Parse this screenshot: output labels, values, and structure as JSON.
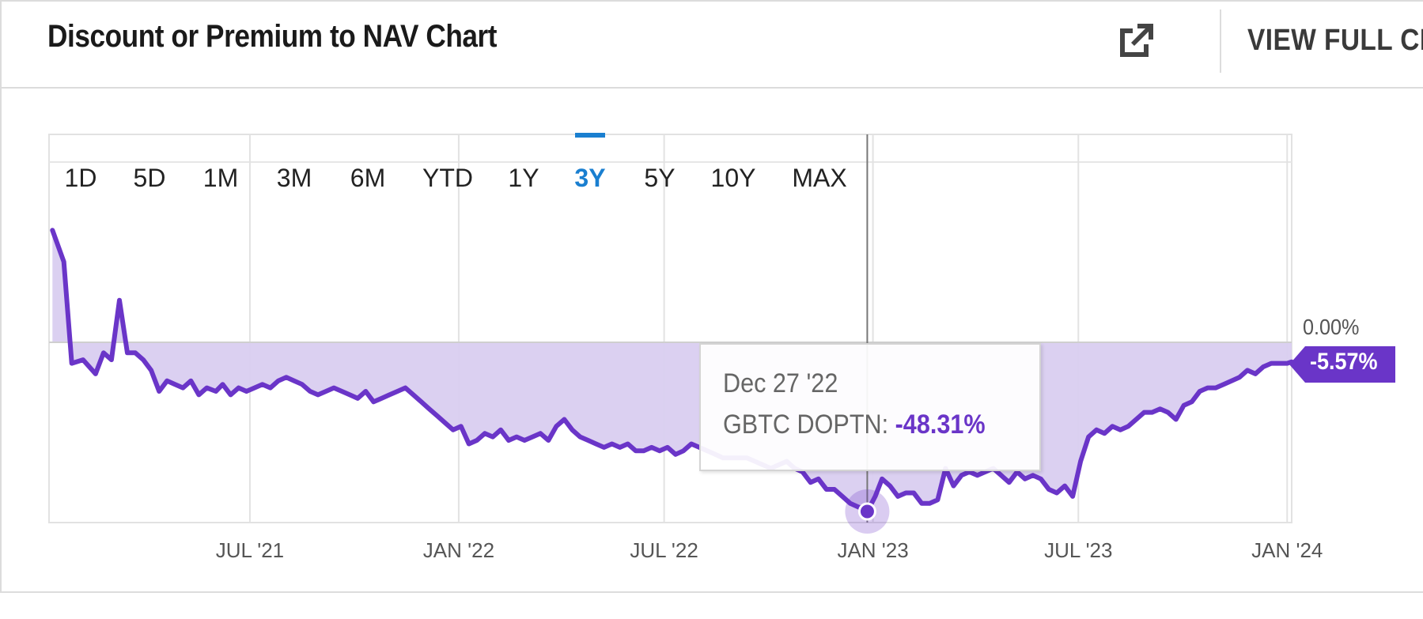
{
  "header": {
    "title": "Discount or Premium to NAV Chart",
    "view_full": "VIEW FULL CH",
    "external_icon": "external-link-icon"
  },
  "range_buttons": [
    "1D",
    "5D",
    "1M",
    "3M",
    "6M",
    "YTD",
    "1Y",
    "3Y",
    "5Y",
    "10Y",
    "MAX"
  ],
  "active_range": "3Y",
  "colors": {
    "accent": "#1a7fd0",
    "series_line": "#6a35c8",
    "series_fill": "#d9cdf0",
    "badge": "#6a35c8"
  },
  "tooltip": {
    "date": "Dec 27 '22",
    "series_label": "GBTC DOPTN:",
    "value": "-48.31%"
  },
  "current_value_label": "-5.57%",
  "zero_line_label": "0.00%",
  "chart_data": {
    "type": "area",
    "title": "Discount or Premium to NAV Chart",
    "series": [
      {
        "name": "GBTC DOPTN",
        "points": [
          [
            "2021-01-08",
            32
          ],
          [
            "2021-01-18",
            23
          ],
          [
            "2021-01-25",
            -6
          ],
          [
            "2021-02-04",
            -5
          ],
          [
            "2021-02-15",
            -9
          ],
          [
            "2021-02-22",
            -3
          ],
          [
            "2021-03-01",
            -5
          ],
          [
            "2021-03-08",
            12
          ],
          [
            "2021-03-15",
            -3
          ],
          [
            "2021-03-22",
            -3
          ],
          [
            "2021-03-29",
            -5
          ],
          [
            "2021-04-05",
            -8
          ],
          [
            "2021-04-12",
            -14
          ],
          [
            "2021-04-19",
            -11
          ],
          [
            "2021-04-26",
            -12
          ],
          [
            "2021-05-03",
            -13
          ],
          [
            "2021-05-10",
            -11
          ],
          [
            "2021-05-17",
            -15
          ],
          [
            "2021-05-24",
            -13
          ],
          [
            "2021-06-01",
            -14
          ],
          [
            "2021-06-07",
            -12
          ],
          [
            "2021-06-14",
            -15
          ],
          [
            "2021-06-21",
            -13
          ],
          [
            "2021-06-28",
            -14
          ],
          [
            "2021-07-05",
            -13
          ],
          [
            "2021-07-12",
            -12
          ],
          [
            "2021-07-19",
            -13
          ],
          [
            "2021-07-26",
            -11
          ],
          [
            "2021-08-02",
            -10
          ],
          [
            "2021-08-09",
            -11
          ],
          [
            "2021-08-16",
            -12
          ],
          [
            "2021-08-23",
            -14
          ],
          [
            "2021-08-30",
            -15
          ],
          [
            "2021-09-06",
            -14
          ],
          [
            "2021-09-13",
            -13
          ],
          [
            "2021-09-20",
            -14
          ],
          [
            "2021-09-27",
            -15
          ],
          [
            "2021-10-04",
            -16
          ],
          [
            "2021-10-11",
            -14
          ],
          [
            "2021-10-18",
            -17
          ],
          [
            "2021-10-25",
            -16
          ],
          [
            "2021-11-01",
            -15
          ],
          [
            "2021-11-08",
            -14
          ],
          [
            "2021-11-15",
            -13
          ],
          [
            "2021-11-22",
            -15
          ],
          [
            "2021-11-29",
            -17
          ],
          [
            "2021-12-06",
            -19
          ],
          [
            "2021-12-13",
            -21
          ],
          [
            "2021-12-20",
            -23
          ],
          [
            "2021-12-27",
            -25
          ],
          [
            "2022-01-03",
            -24
          ],
          [
            "2022-01-10",
            -29
          ],
          [
            "2022-01-17",
            -28
          ],
          [
            "2022-01-24",
            -26
          ],
          [
            "2022-01-31",
            -27
          ],
          [
            "2022-02-07",
            -25
          ],
          [
            "2022-02-14",
            -28
          ],
          [
            "2022-02-21",
            -27
          ],
          [
            "2022-02-28",
            -28
          ],
          [
            "2022-03-07",
            -27
          ],
          [
            "2022-03-14",
            -26
          ],
          [
            "2022-03-21",
            -28
          ],
          [
            "2022-03-28",
            -24
          ],
          [
            "2022-04-04",
            -22
          ],
          [
            "2022-04-11",
            -25
          ],
          [
            "2022-04-18",
            -27
          ],
          [
            "2022-04-25",
            -28
          ],
          [
            "2022-05-02",
            -29
          ],
          [
            "2022-05-09",
            -30
          ],
          [
            "2022-05-16",
            -29
          ],
          [
            "2022-05-23",
            -30
          ],
          [
            "2022-05-30",
            -29
          ],
          [
            "2022-06-06",
            -31
          ],
          [
            "2022-06-13",
            -31
          ],
          [
            "2022-06-20",
            -30
          ],
          [
            "2022-06-27",
            -31
          ],
          [
            "2022-07-04",
            -30
          ],
          [
            "2022-07-11",
            -32
          ],
          [
            "2022-07-18",
            -31
          ],
          [
            "2022-07-25",
            -29
          ],
          [
            "2022-08-01",
            -30
          ],
          [
            "2022-08-08",
            -31
          ],
          [
            "2022-08-15",
            -32
          ],
          [
            "2022-08-22",
            -33
          ],
          [
            "2022-08-29",
            -33
          ],
          [
            "2022-09-05",
            -33
          ],
          [
            "2022-09-12",
            -33
          ],
          [
            "2022-09-19",
            -34
          ],
          [
            "2022-09-26",
            -35
          ],
          [
            "2022-10-03",
            -36
          ],
          [
            "2022-10-10",
            -35
          ],
          [
            "2022-10-17",
            -34
          ],
          [
            "2022-10-24",
            -36
          ],
          [
            "2022-10-31",
            -37
          ],
          [
            "2022-11-07",
            -40
          ],
          [
            "2022-11-14",
            -39
          ],
          [
            "2022-11-21",
            -42
          ],
          [
            "2022-11-28",
            -42
          ],
          [
            "2022-12-05",
            -44
          ],
          [
            "2022-12-12",
            -46
          ],
          [
            "2022-12-19",
            -47
          ],
          [
            "2022-12-27",
            -48.31
          ],
          [
            "2023-01-03",
            -44
          ],
          [
            "2023-01-09",
            -39
          ],
          [
            "2023-01-16",
            -41
          ],
          [
            "2023-01-23",
            -44
          ],
          [
            "2023-01-30",
            -43
          ],
          [
            "2023-02-06",
            -43
          ],
          [
            "2023-02-13",
            -46
          ],
          [
            "2023-02-20",
            -46
          ],
          [
            "2023-02-27",
            -45
          ],
          [
            "2023-03-06",
            -36
          ],
          [
            "2023-03-13",
            -41
          ],
          [
            "2023-03-20",
            -38
          ],
          [
            "2023-03-27",
            -37
          ],
          [
            "2023-04-03",
            -38
          ],
          [
            "2023-04-10",
            -37
          ],
          [
            "2023-04-17",
            -36
          ],
          [
            "2023-04-24",
            -38
          ],
          [
            "2023-05-01",
            -40
          ],
          [
            "2023-05-08",
            -37
          ],
          [
            "2023-05-15",
            -39
          ],
          [
            "2023-05-22",
            -38
          ],
          [
            "2023-05-29",
            -39
          ],
          [
            "2023-06-05",
            -42
          ],
          [
            "2023-06-12",
            -43
          ],
          [
            "2023-06-19",
            -41
          ],
          [
            "2023-06-26",
            -44
          ],
          [
            "2023-07-03",
            -34
          ],
          [
            "2023-07-10",
            -27
          ],
          [
            "2023-07-17",
            -25
          ],
          [
            "2023-07-24",
            -26
          ],
          [
            "2023-07-31",
            -24
          ],
          [
            "2023-08-07",
            -25
          ],
          [
            "2023-08-14",
            -24
          ],
          [
            "2023-08-21",
            -22
          ],
          [
            "2023-08-28",
            -20
          ],
          [
            "2023-09-04",
            -20
          ],
          [
            "2023-09-11",
            -19
          ],
          [
            "2023-09-18",
            -20
          ],
          [
            "2023-09-25",
            -22
          ],
          [
            "2023-10-02",
            -18
          ],
          [
            "2023-10-09",
            -17
          ],
          [
            "2023-10-16",
            -14
          ],
          [
            "2023-10-23",
            -13
          ],
          [
            "2023-10-30",
            -13
          ],
          [
            "2023-11-06",
            -12
          ],
          [
            "2023-11-13",
            -11
          ],
          [
            "2023-11-20",
            -10
          ],
          [
            "2023-11-27",
            -8
          ],
          [
            "2023-12-04",
            -9
          ],
          [
            "2023-12-11",
            -7
          ],
          [
            "2023-12-18",
            -6
          ],
          [
            "2023-12-25",
            -6
          ],
          [
            "2024-01-01",
            -6
          ],
          [
            "2024-01-05",
            -5.57
          ]
        ]
      }
    ],
    "x_range": [
      "2021-01-05",
      "2024-01-05"
    ],
    "ylim": [
      -50,
      35
    ],
    "x_ticks": [
      {
        "date": "2021-07-01",
        "label": "JUL '21"
      },
      {
        "date": "2022-01-01",
        "label": "JAN '22"
      },
      {
        "date": "2022-07-01",
        "label": "JUL '22"
      },
      {
        "date": "2023-01-01",
        "label": "JAN '23"
      },
      {
        "date": "2023-07-01",
        "label": "JUL '23"
      },
      {
        "date": "2024-01-01",
        "label": "JAN '24"
      }
    ],
    "zero_line": 0,
    "hover_date": "2022-12-27",
    "grid": true,
    "legend": "none"
  }
}
